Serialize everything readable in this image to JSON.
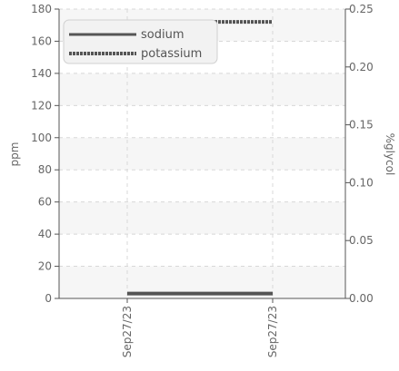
{
  "chart_data": {
    "type": "line",
    "x": [
      "Sep27/23",
      "Sep27/23"
    ],
    "ylabel_left": "ppm",
    "ylabel_right": "%glycol",
    "ylim_left": [
      0,
      180
    ],
    "ylim_right": [
      0,
      0.25
    ],
    "left_ticks": [
      "0",
      "20",
      "40",
      "60",
      "80",
      "100",
      "120",
      "140",
      "160",
      "180"
    ],
    "right_ticks": [
      "0.00",
      "0.05",
      "0.10",
      "0.15",
      "0.20",
      "0.25"
    ],
    "series": [
      {
        "name": "sodium",
        "axis": "left",
        "values": [
          3,
          3
        ],
        "color": "#555555",
        "style": "solid"
      },
      {
        "name": "potassium",
        "axis": "left",
        "values": [
          172,
          172
        ],
        "color": "#555555",
        "style": "dashed"
      }
    ],
    "grid": true,
    "legend": "top-left"
  }
}
